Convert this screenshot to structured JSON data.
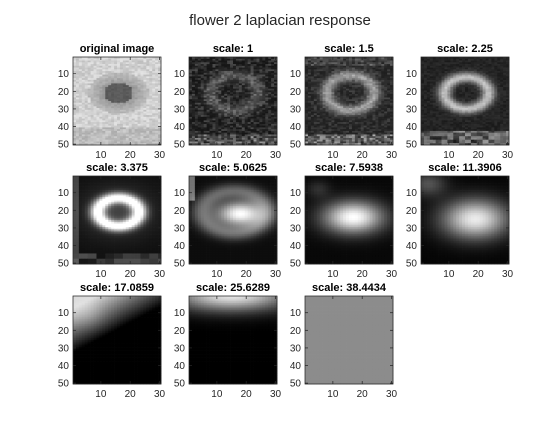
{
  "figure": {
    "title": "flower 2 laplacian response"
  },
  "chart_data": [
    {
      "type": "heatmap",
      "title": "original image",
      "xticks": [
        10,
        20,
        30
      ],
      "yticks": [
        10,
        20,
        30,
        40,
        50
      ],
      "xlim": [
        0.5,
        30.5
      ],
      "ylim": [
        0.5,
        50.5
      ],
      "colormap": "gray",
      "pattern": "original"
    },
    {
      "type": "heatmap",
      "title": "scale: 1",
      "xticks": [
        10,
        20,
        30
      ],
      "yticks": [
        10,
        20,
        30,
        40,
        50
      ],
      "xlim": [
        0.5,
        30.5
      ],
      "ylim": [
        0.5,
        50.5
      ],
      "colormap": "gray",
      "pattern": "noise"
    },
    {
      "type": "heatmap",
      "title": "scale: 1.5",
      "xticks": [
        10,
        20,
        30
      ],
      "yticks": [
        10,
        20,
        30,
        40,
        50
      ],
      "xlim": [
        0.5,
        30.5
      ],
      "ylim": [
        0.5,
        50.5
      ],
      "colormap": "gray",
      "pattern": "ring_faint"
    },
    {
      "type": "heatmap",
      "title": "scale: 2.25",
      "xticks": [
        10,
        20,
        30
      ],
      "yticks": [
        10,
        20,
        30,
        40,
        50
      ],
      "xlim": [
        0.5,
        30.5
      ],
      "ylim": [
        0.5,
        50.5
      ],
      "colormap": "gray",
      "pattern": "ring"
    },
    {
      "type": "heatmap",
      "title": "scale: 3.375",
      "xticks": [
        10,
        20,
        30
      ],
      "yticks": [
        10,
        20,
        30,
        40,
        50
      ],
      "xlim": [
        0.5,
        30.5
      ],
      "ylim": [
        0.5,
        50.5
      ],
      "colormap": "gray",
      "pattern": "ring_bright"
    },
    {
      "type": "heatmap",
      "title": "scale: 5.0625",
      "xticks": [
        10,
        20,
        30
      ],
      "yticks": [
        10,
        20,
        30,
        40,
        50
      ],
      "xlim": [
        0.5,
        30.5
      ],
      "ylim": [
        0.5,
        50.5
      ],
      "colormap": "gray",
      "pattern": "blob_ring"
    },
    {
      "type": "heatmap",
      "title": "scale: 7.5938",
      "xticks": [
        10,
        20,
        30
      ],
      "yticks": [
        10,
        20,
        30,
        40,
        50
      ],
      "xlim": [
        0.5,
        30.5
      ],
      "ylim": [
        0.5,
        50.5
      ],
      "colormap": "gray",
      "pattern": "blob"
    },
    {
      "type": "heatmap",
      "title": "scale: 11.3906",
      "xticks": [
        10,
        20,
        30
      ],
      "yticks": [
        10,
        20,
        30,
        40,
        50
      ],
      "xlim": [
        0.5,
        30.5
      ],
      "ylim": [
        0.5,
        50.5
      ],
      "colormap": "gray",
      "pattern": "blob_large"
    },
    {
      "type": "heatmap",
      "title": "scale: 17.0859",
      "xticks": [
        10,
        20,
        30
      ],
      "yticks": [
        10,
        20,
        30,
        40,
        50
      ],
      "xlim": [
        0.5,
        30.5
      ],
      "ylim": [
        0.5,
        50.5
      ],
      "colormap": "gray",
      "pattern": "corner_top_left"
    },
    {
      "type": "heatmap",
      "title": "scale: 25.6289",
      "xticks": [
        10,
        20,
        30
      ],
      "yticks": [
        10,
        20,
        30,
        40,
        50
      ],
      "xlim": [
        0.5,
        30.5
      ],
      "ylim": [
        0.5,
        50.5
      ],
      "colormap": "gray",
      "pattern": "top_band"
    },
    {
      "type": "heatmap",
      "title": "scale: 38.4434",
      "xticks": [
        10,
        20,
        30
      ],
      "yticks": [
        10,
        20,
        30,
        40,
        50
      ],
      "xlim": [
        0.5,
        30.5
      ],
      "ylim": [
        0.5,
        50.5
      ],
      "colormap": "gray",
      "pattern": "uniform"
    }
  ]
}
